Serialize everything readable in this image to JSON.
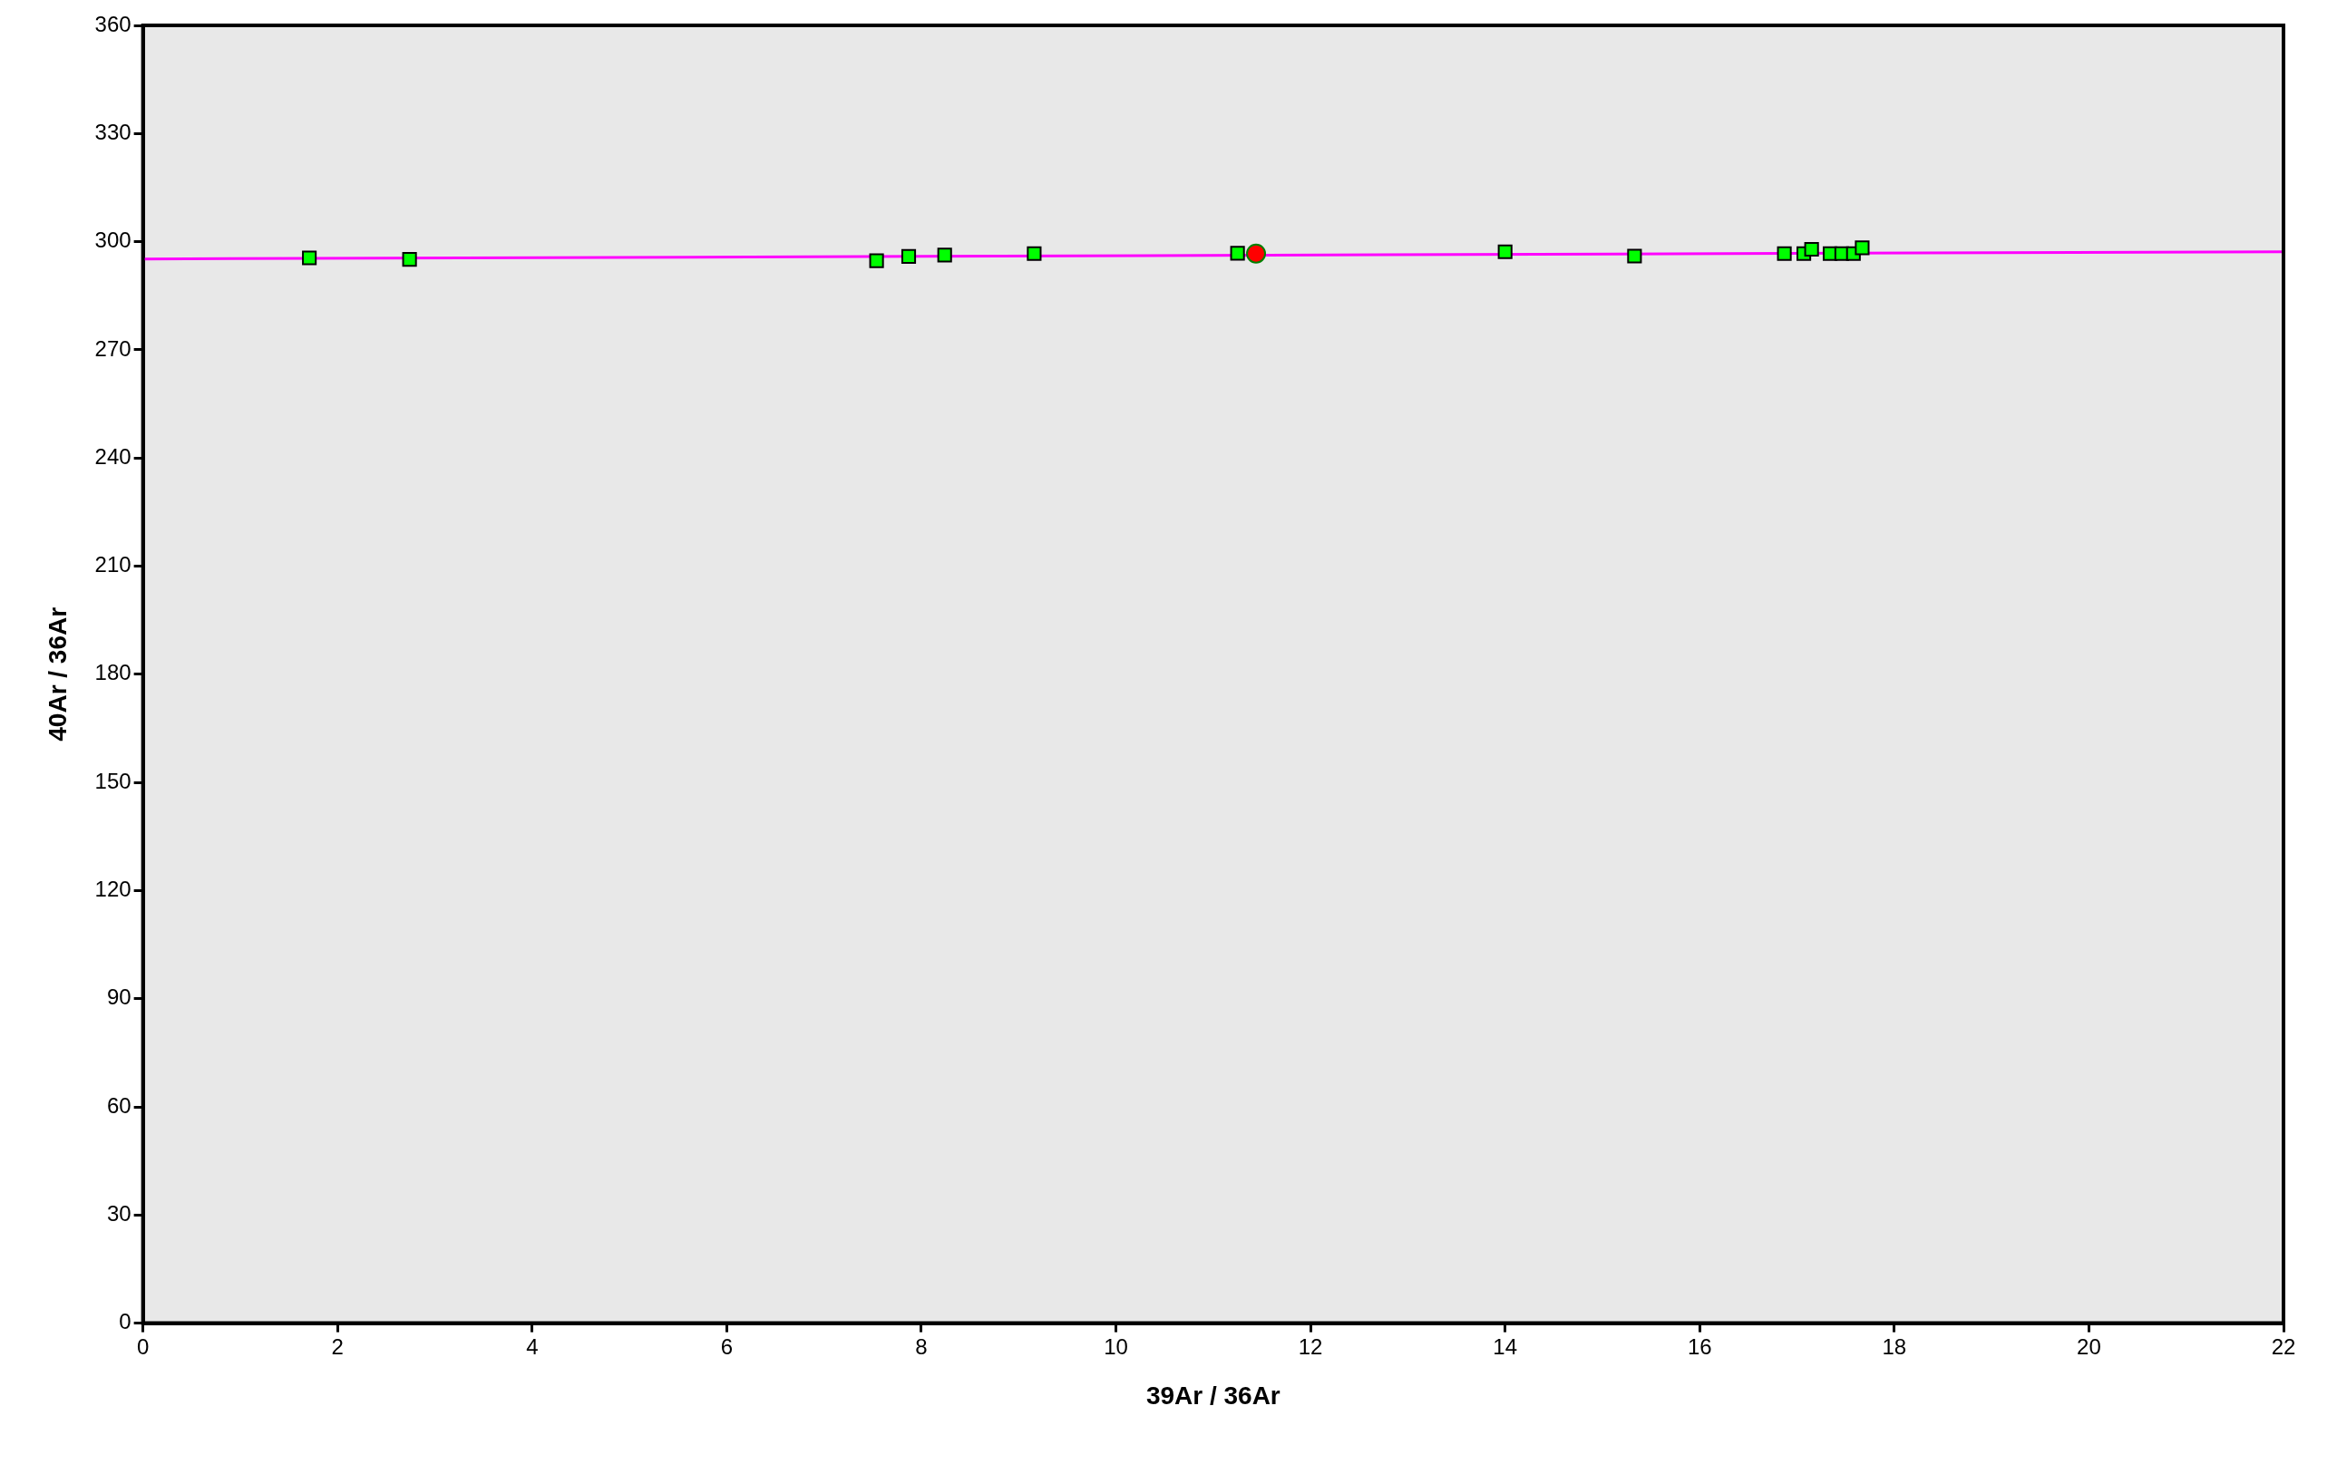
{
  "chart_data": {
    "type": "scatter",
    "xlabel": "39Ar / 36Ar",
    "ylabel": "40Ar / 36Ar",
    "xlim": [
      0,
      22
    ],
    "xticks": [
      0,
      2,
      4,
      6,
      8,
      10,
      12,
      14,
      16,
      18,
      20,
      22
    ],
    "ylim": [
      0,
      360
    ],
    "yticks": [
      0,
      30,
      60,
      90,
      120,
      150,
      180,
      210,
      240,
      270,
      300,
      330,
      360
    ],
    "grid": false,
    "legend": false,
    "series": [
      {
        "type": "scatter",
        "marker": "square",
        "color": "#00ff00",
        "x": [
          1.71,
          2.74,
          7.54,
          7.87,
          8.24,
          9.16,
          11.25,
          14.0,
          15.33,
          16.87,
          17.07,
          17.15,
          17.34,
          17.46,
          17.58,
          17.67
        ],
        "values": [
          295.5,
          295.1,
          294.7,
          295.9,
          296.3,
          296.7,
          296.8,
          297.2,
          296.0,
          296.7,
          296.7,
          297.9,
          296.7,
          296.7,
          296.7,
          298.3
        ]
      },
      {
        "type": "scatter",
        "marker": "circle",
        "color": "#ff0000",
        "x": [
          11.44
        ],
        "values": [
          296.7
        ]
      },
      {
        "type": "line",
        "marker": "none",
        "color": "#ff00ff",
        "x": [
          0,
          22
        ],
        "values": [
          295.2,
          297.2
        ]
      }
    ]
  }
}
